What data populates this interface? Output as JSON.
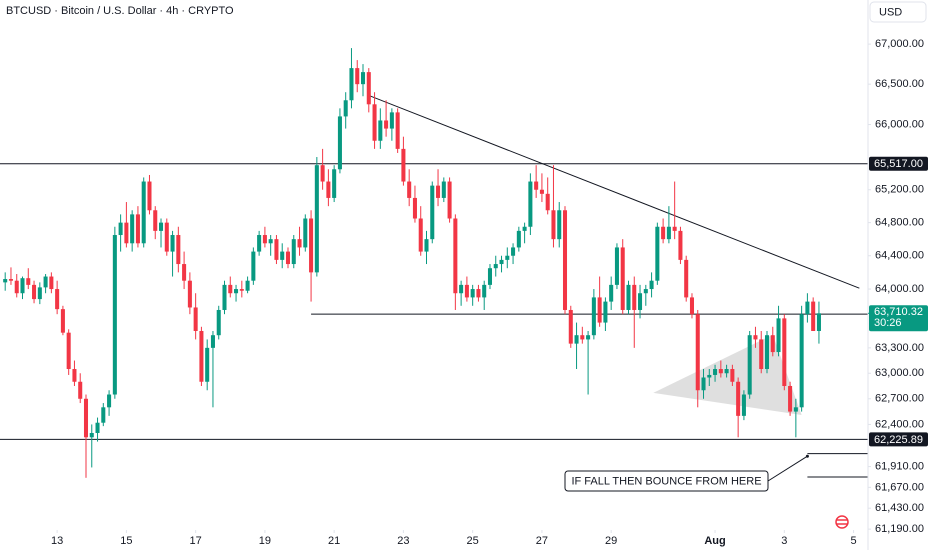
{
  "chart_data": {
    "type": "candlestick",
    "title": "BTCUSD · Bitcoin / U.S. Dollar · 4h · CRYPTO",
    "currency": "USD",
    "log_scale": true,
    "up_color": "#089981",
    "down_color": "#f23645",
    "ylim": [
      61180,
      67555
    ],
    "yticks": [
      {
        "value": 67000,
        "label": "67,000.00"
      },
      {
        "value": 66500,
        "label": "66,500.00"
      },
      {
        "value": 66000,
        "label": "66,000.00"
      },
      {
        "value": 65200,
        "label": "65,200.00"
      },
      {
        "value": 64800,
        "label": "64,800.00"
      },
      {
        "value": 64400,
        "label": "64,400.00"
      },
      {
        "value": 64000,
        "label": "64,000.00"
      },
      {
        "value": 63300,
        "label": "63,300.00"
      },
      {
        "value": 63000,
        "label": "63,000.00"
      },
      {
        "value": 62700,
        "label": "62,700.00"
      },
      {
        "value": 62400,
        "label": "62,400.00"
      },
      {
        "value": 61910,
        "label": "61,910.00"
      },
      {
        "value": 61670,
        "label": "61,670.00"
      },
      {
        "value": 61430,
        "label": "61,430.00"
      },
      {
        "value": 61190,
        "label": "61,190.00"
      }
    ],
    "xlim": [
      -0.9,
      149.5
    ],
    "xticks": [
      {
        "value": 9,
        "label": "13"
      },
      {
        "value": 21,
        "label": "15"
      },
      {
        "value": 33,
        "label": "17"
      },
      {
        "value": 45,
        "label": "19"
      },
      {
        "value": 57,
        "label": "21"
      },
      {
        "value": 69,
        "label": "23"
      },
      {
        "value": 81,
        "label": "25"
      },
      {
        "value": 93,
        "label": "27"
      },
      {
        "value": 105,
        "label": "29"
      },
      {
        "value": 123,
        "label": "Aug"
      },
      {
        "value": 135,
        "label": "3"
      },
      {
        "value": 147,
        "label": "5"
      }
    ],
    "ohlc": [
      [
        64080,
        64200,
        63980,
        64120
      ],
      [
        64120,
        64260,
        64050,
        64100
      ],
      [
        64100,
        64180,
        63900,
        63950
      ],
      [
        63950,
        64150,
        63880,
        64130
      ],
      [
        64130,
        64250,
        64000,
        64050
      ],
      [
        64050,
        64100,
        63830,
        63880
      ],
      [
        63880,
        64080,
        63820,
        64020
      ],
      [
        64020,
        64180,
        63950,
        64150
      ],
      [
        64150,
        64200,
        63950,
        64000
      ],
      [
        64000,
        64100,
        63700,
        63760
      ],
      [
        63760,
        63800,
        63450,
        63480
      ],
      [
        63480,
        63520,
        62980,
        63050
      ],
      [
        63050,
        63150,
        62850,
        62900
      ],
      [
        62900,
        63000,
        62650,
        62700
      ],
      [
        62700,
        62750,
        61780,
        62250
      ],
      [
        62250,
        62400,
        61900,
        62300
      ],
      [
        62300,
        62480,
        62200,
        62420
      ],
      [
        62420,
        62650,
        62380,
        62600
      ],
      [
        62600,
        62800,
        62500,
        62750
      ],
      [
        62750,
        64750,
        62700,
        64650
      ],
      [
        64650,
        64900,
        64450,
        64800
      ],
      [
        64800,
        65050,
        64500,
        64550
      ],
      [
        64550,
        64950,
        64450,
        64900
      ],
      [
        64900,
        65000,
        64500,
        64550
      ],
      [
        64550,
        65350,
        64500,
        65300
      ],
      [
        65300,
        65380,
        64900,
        64950
      ],
      [
        64950,
        65000,
        64600,
        64700
      ],
      [
        64700,
        64850,
        64500,
        64800
      ],
      [
        64800,
        64850,
        64400,
        64450
      ],
      [
        64450,
        64700,
        64150,
        64650
      ],
      [
        64650,
        64750,
        64200,
        64300
      ],
      [
        64300,
        64450,
        64000,
        64100
      ],
      [
        64100,
        64200,
        63700,
        63780
      ],
      [
        63780,
        63950,
        63400,
        63500
      ],
      [
        63500,
        63550,
        62850,
        62900
      ],
      [
        62900,
        63400,
        62800,
        63300
      ],
      [
        63300,
        63500,
        62600,
        63450
      ],
      [
        63450,
        63800,
        63400,
        63750
      ],
      [
        63750,
        64100,
        63700,
        64050
      ],
      [
        64050,
        64150,
        63900,
        63950
      ],
      [
        63950,
        64050,
        63850,
        64000
      ],
      [
        64000,
        64100,
        63900,
        63980
      ],
      [
        63980,
        64150,
        63950,
        64100
      ],
      [
        64100,
        64500,
        64050,
        64450
      ],
      [
        64450,
        64700,
        64400,
        64650
      ],
      [
        64650,
        64750,
        64500,
        64550
      ],
      [
        64550,
        64650,
        64400,
        64600
      ],
      [
        64600,
        64650,
        64300,
        64350
      ],
      [
        64350,
        64550,
        64250,
        64450
      ],
      [
        64450,
        64500,
        64250,
        64300
      ],
      [
        64300,
        64650,
        64250,
        64600
      ],
      [
        64600,
        64750,
        64400,
        64500
      ],
      [
        64500,
        64900,
        64450,
        64850
      ],
      [
        64850,
        64950,
        63850,
        64200
      ],
      [
        64200,
        65600,
        64150,
        65500
      ],
      [
        65500,
        65700,
        65200,
        65300
      ],
      [
        65300,
        65450,
        65000,
        65100
      ],
      [
        65100,
        65500,
        65050,
        65450
      ],
      [
        65450,
        66200,
        65400,
        66100
      ],
      [
        66100,
        66400,
        65950,
        66300
      ],
      [
        66300,
        66950,
        66200,
        66700
      ],
      [
        66700,
        66800,
        66400,
        66500
      ],
      [
        66500,
        66750,
        66350,
        66650
      ],
      [
        66650,
        66700,
        66150,
        66250
      ],
      [
        66250,
        66400,
        65700,
        65800
      ],
      [
        65800,
        66200,
        65700,
        66050
      ],
      [
        66050,
        66300,
        65850,
        65950
      ],
      [
        65950,
        66200,
        65800,
        66150
      ],
      [
        66150,
        66200,
        65650,
        65700
      ],
      [
        65700,
        65850,
        65250,
        65300
      ],
      [
        65300,
        65450,
        65000,
        65100
      ],
      [
        65100,
        65250,
        64800,
        64850
      ],
      [
        64850,
        65000,
        64400,
        64450
      ],
      [
        64450,
        64700,
        64300,
        64600
      ],
      [
        64600,
        65300,
        64550,
        65250
      ],
      [
        65250,
        65450,
        65000,
        65100
      ],
      [
        65100,
        65350,
        65050,
        65300
      ],
      [
        65300,
        65350,
        64800,
        64850
      ],
      [
        64850,
        64900,
        63750,
        63950
      ],
      [
        63950,
        64100,
        63800,
        64050
      ],
      [
        64050,
        64150,
        63850,
        63900
      ],
      [
        63900,
        64050,
        63800,
        64000
      ],
      [
        64000,
        64050,
        63850,
        63900
      ],
      [
        63900,
        64100,
        63750,
        64050
      ],
      [
        64050,
        64300,
        64000,
        64250
      ],
      [
        64250,
        64400,
        64150,
        64300
      ],
      [
        64300,
        64400,
        64200,
        64350
      ],
      [
        64350,
        64500,
        64250,
        64400
      ],
      [
        64400,
        64550,
        64300,
        64500
      ],
      [
        64500,
        64750,
        64450,
        64700
      ],
      [
        64700,
        64800,
        64550,
        64750
      ],
      [
        64750,
        65400,
        64650,
        65300
      ],
      [
        65300,
        65500,
        65100,
        65200
      ],
      [
        65200,
        65400,
        65050,
        65150
      ],
      [
        65150,
        65350,
        64900,
        64950
      ],
      [
        64950,
        65500,
        64500,
        64600
      ],
      [
        64600,
        65050,
        64500,
        64950
      ],
      [
        64950,
        65000,
        63700,
        63750
      ],
      [
        63750,
        63800,
        63300,
        63350
      ],
      [
        63350,
        63600,
        63050,
        63450
      ],
      [
        63450,
        63550,
        63350,
        63400
      ],
      [
        63400,
        63500,
        62750,
        63450
      ],
      [
        63450,
        64000,
        63400,
        63900
      ],
      [
        63900,
        64150,
        63550,
        63600
      ],
      [
        63600,
        63900,
        63500,
        63850
      ],
      [
        63850,
        64150,
        63750,
        64050
      ],
      [
        64050,
        64550,
        64000,
        64500
      ],
      [
        64500,
        64600,
        63700,
        63750
      ],
      [
        63750,
        64100,
        63700,
        64050
      ],
      [
        64050,
        64150,
        63300,
        63750
      ],
      [
        63750,
        64050,
        63650,
        63950
      ],
      [
        63950,
        64050,
        63800,
        64000
      ],
      [
        64000,
        64200,
        63900,
        64100
      ],
      [
        64100,
        64800,
        64050,
        64750
      ],
      [
        64750,
        64850,
        64550,
        64600
      ],
      [
        64600,
        65000,
        64550,
        64750
      ],
      [
        64750,
        65300,
        64600,
        64700
      ],
      [
        64700,
        64750,
        64300,
        64350
      ],
      [
        64350,
        64400,
        63850,
        63900
      ],
      [
        63900,
        63950,
        63650,
        63700
      ],
      [
        63700,
        63750,
        62600,
        62800
      ],
      [
        62800,
        63050,
        62700,
        62950
      ],
      [
        62950,
        63050,
        62850,
        62980
      ],
      [
        62980,
        63100,
        62900,
        63050
      ],
      [
        63050,
        63150,
        62950,
        63000
      ],
      [
        63000,
        63100,
        62950,
        63050
      ],
      [
        63050,
        63100,
        62850,
        62900
      ],
      [
        62900,
        62950,
        62250,
        62500
      ],
      [
        62500,
        62800,
        62450,
        62750
      ],
      [
        62750,
        63500,
        62700,
        63450
      ],
      [
        63450,
        63550,
        63300,
        63400
      ],
      [
        63400,
        63500,
        63000,
        63050
      ],
      [
        63050,
        63500,
        63000,
        63450
      ],
      [
        63450,
        63550,
        63200,
        63250
      ],
      [
        63250,
        63800,
        63200,
        63650
      ],
      [
        63650,
        63700,
        62800,
        62850
      ],
      [
        62850,
        62900,
        62500,
        62550
      ],
      [
        62550,
        62700,
        62250,
        62600
      ],
      [
        62600,
        63800,
        62550,
        63700
      ],
      [
        63700,
        63950,
        63600,
        63850
      ],
      [
        63850,
        63900,
        63500,
        63500
      ],
      [
        63500,
        63850,
        63350,
        63710.32
      ]
    ],
    "current_price": {
      "value": 63710.32,
      "label": "63,710.32",
      "countdown": "30:26"
    },
    "levels": [
      {
        "value": 65517,
        "label": "65,517.00"
      },
      {
        "value": 62225.89,
        "label": "62,225.89"
      }
    ],
    "support_line": {
      "x_start": 53,
      "value": 63700
    },
    "trend_line": {
      "x": [
        63,
        148
      ],
      "y": [
        66360,
        64010
      ]
    },
    "triangle": {
      "x": [
        112.3,
        133,
        138
      ],
      "y": [
        62770,
        63455,
        62510
      ]
    },
    "target_lines": [
      {
        "x_start": 139,
        "value": 62060
      },
      {
        "x_start": 139,
        "value": 61790
      }
    ],
    "annotation": {
      "text": "IF FALL THEN BOUNCE FROM HERE",
      "arrow_x": 139,
      "arrow_y": 62030
    }
  }
}
